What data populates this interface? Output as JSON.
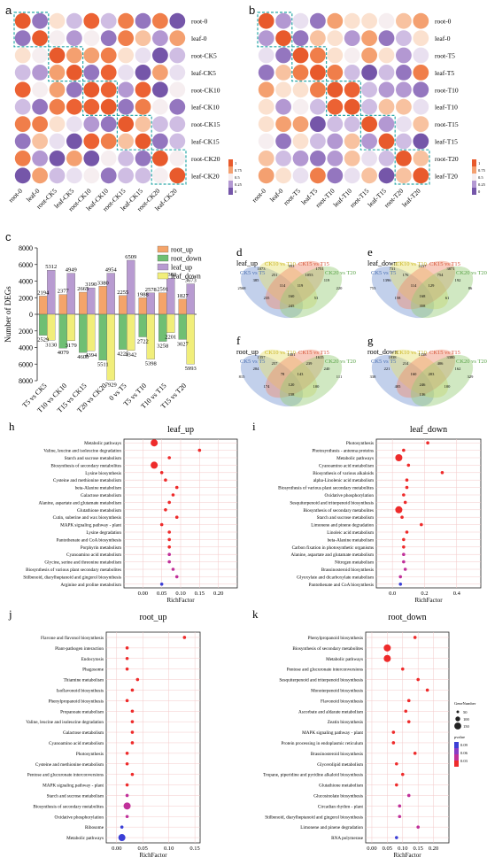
{
  "heatmaps": [
    {
      "panel_label": "a",
      "row_labels": [
        "root-0",
        "leaf-0",
        "root-CK5",
        "leaf-CK5",
        "root-CK10",
        "leaf-CK10",
        "root-CK15",
        "leaf-CK15",
        "root-CK20",
        "leaf-CK20"
      ],
      "col_labels": [
        "root-0",
        "leaf-0",
        "root-CK5",
        "leaf-CK5",
        "root-CK10",
        "leaf-CK10",
        "root-CK15",
        "leaf-CK15",
        "root-CK20",
        "leaf-CK20"
      ],
      "colorbar_ticks": [
        "1",
        "0.75",
        "0.5",
        "0.25",
        "0"
      ]
    },
    {
      "panel_label": "b",
      "row_labels": [
        "root-0",
        "leaf-0",
        "root-T5",
        "leaf-T5",
        "root-T10",
        "leaf-T10",
        "root-T15",
        "leaf-T15",
        "root-T20",
        "leaf-T20"
      ],
      "col_labels": [
        "root-0",
        "leaf-0",
        "root-T5",
        "leaf-T5",
        "root-T10",
        "leaf-T10",
        "root-T15",
        "leaf-T15",
        "root-T20",
        "leaf-T20"
      ],
      "colorbar_ticks": [
        "1",
        "0.75",
        "0.5",
        "0.25",
        "0"
      ]
    }
  ],
  "deg_chart": {
    "panel_label": "c",
    "ylabel": "Number of DEGs",
    "categories": [
      "T5 vs CK5",
      "T10 vs CK10",
      "T15 vs CK15",
      "T20 vs CK20",
      "0 vs T5",
      "T5 vs T10",
      "T10 vs T15",
      "T15 vs T20"
    ],
    "ylim": [
      -8000,
      8000
    ],
    "yticks": [
      "8000",
      "6000",
      "4000",
      "2000",
      "0",
      "2000",
      "4000",
      "6000",
      "8000"
    ],
    "legend": [
      "root_up",
      "root_down",
      "leaf_up",
      "leaf_down"
    ],
    "colors": {
      "root_up": "#f4a46a",
      "root_down": "#6fbf73",
      "leaf_up": "#b89bd1",
      "leaf_down": "#f1ee7a"
    },
    "series": [
      {
        "name": "root_up",
        "values": [
          2194,
          2377,
          2665,
          3380,
          2255,
          1988,
          2591,
          1827
        ]
      },
      {
        "name": "root_down",
        "values": [
          2529,
          4079,
          4600,
          5511,
          4225,
          2722,
          3258,
          3027
        ]
      },
      {
        "name": "leaf_up",
        "values": [
          5312,
          4949,
          3190,
          4954,
          6509,
          2578,
          4360,
          3673
        ]
      },
      {
        "name": "leaf_down",
        "values": [
          3130,
          3179,
          4394,
          7929,
          4342,
          5398,
          2201,
          5993
        ]
      }
    ]
  },
  "venns": [
    {
      "panel_label": "d",
      "title": "leaf_up",
      "sets": [
        "CK5 vs T5",
        "CK10 vs T10",
        "CK15 vs T15",
        "CK20 vs T20"
      ],
      "numbers": [
        "2568",
        "1073",
        "893",
        "1751",
        "220",
        "385",
        "251",
        "160",
        "1053",
        "119",
        "235",
        "114",
        "119",
        "53",
        "245"
      ]
    },
    {
      "panel_label": "e",
      "title": "leaf_down",
      "sets": [
        "CK5 vs T5",
        "CK10 vs T10",
        "CK15 vs T15",
        "CK20 vs T20"
      ],
      "numbers": [
        "753",
        "731",
        "2237",
        "3871",
        "86",
        "1396",
        "176",
        "168",
        "754",
        "192",
        "158",
        "114",
        "129",
        "61",
        "358"
      ]
    },
    {
      "panel_label": "f",
      "title": "root_up",
      "sets": [
        "CK5 vs T5",
        "CK10 vs T10",
        "CK15 vs T15",
        "CK20 vs T20"
      ],
      "numbers": [
        "815",
        "1357",
        "1081",
        "1615",
        "111",
        "284",
        "257",
        "120",
        "239",
        "240",
        "174",
        "78",
        "143",
        "100",
        "158"
      ]
    },
    {
      "panel_label": "g",
      "title": "root_down",
      "sets": [
        "CK5 vs T5",
        "CK10 vs T10",
        "CK15 vs T15",
        "CK20 vs T20"
      ],
      "numbers": [
        "338",
        "1838",
        "1338",
        "3380",
        "329",
        "221",
        "214",
        "246",
        "406",
        "162",
        "405",
        "160",
        "203",
        "100",
        "136"
      ]
    }
  ],
  "chart_data": [
    {
      "type": "scatter",
      "panel_label": "h",
      "title": "leaf_up",
      "xlabel": "RichFactor",
      "xlim": [
        -0.05,
        0.25
      ],
      "xticks": [
        "0.00",
        "0.05",
        "0.10",
        "0.15",
        "0.20"
      ],
      "categories": [
        "Metabolic pathways",
        "Valine, leucine and isoleucine degradation",
        "Starch and sucrose metabolism",
        "Biosynthesis of secondary metabolites",
        "Lysine biosynthesis",
        "Cysteine and methionine metabolism",
        "beta-Alanine metabolism",
        "Galactose metabolism",
        "Alanine, aspartate and glutamate metabolism",
        "Glutathione metabolism",
        "Cutin, suberine and wax biosynthesis",
        "MAPK signaling pathway - plant",
        "Lysine degradation",
        "Pantothenate and CoA biosynthesis",
        "Porphyrin metabolism",
        "Cyanoamino acid metabolism",
        "Glycine, serine and threonine metabolism",
        "Biosynthesis of various plant secondary metabolites",
        "Stilbenoid, diarylheptanoid and gingerol biosynthesis",
        "Arginine and proline metabolism"
      ],
      "values": [
        0.03,
        0.15,
        0.07,
        0.03,
        0.05,
        0.06,
        0.09,
        0.08,
        0.07,
        0.06,
        0.09,
        0.05,
        0.07,
        0.07,
        0.07,
        0.07,
        0.07,
        0.08,
        0.09,
        0.05
      ]
    },
    {
      "type": "scatter",
      "panel_label": "i",
      "title": "leaf_down",
      "xlabel": "RichFactor",
      "xlim": [
        -0.1,
        0.55
      ],
      "xticks": [
        "0.0",
        "0.2",
        "0.4"
      ],
      "categories": [
        "Photosynthesis",
        "Photosynthesis - antenna proteins",
        "Metabolic pathways",
        "Cyanoamino acid metabolism",
        "Biosynthesis of various alkaloids",
        "alpha-Linolenic acid metabolism",
        "Biosynthesis of various plant secondary metabolites",
        "Oxidative phosphorylation",
        "Sesquiterpenoid and triterpenoid biosynthesis",
        "Biosynthesis of secondary metabolites",
        "Starch and sucrose metabolism",
        "Limonene and pinene degradation",
        "Linoleic acid metabolism",
        "beta-Alanine metabolism",
        "Carbon fixation in photosynthetic organisms",
        "Alanine, aspartate and glutamate metabolism",
        "Nitrogen metabolism",
        "Brassinosteroid biosynthesis",
        "Glyoxylate and dicarboxylate metabolism",
        "Pantothenate and CoA biosynthesis"
      ],
      "values": [
        0.22,
        0.07,
        0.04,
        0.1,
        0.31,
        0.09,
        0.09,
        0.07,
        0.08,
        0.04,
        0.06,
        0.18,
        0.09,
        0.07,
        0.07,
        0.07,
        0.07,
        0.08,
        0.05,
        0.05
      ]
    },
    {
      "type": "scatter",
      "panel_label": "j",
      "title": "root_up",
      "xlabel": "RichFactor",
      "xlim": [
        -0.02,
        0.16
      ],
      "xticks": [
        "0.00",
        "0.05",
        "0.10",
        "0.15"
      ],
      "categories": [
        "Flavone and flavonol biosynthesis",
        "Plant-pathogen interaction",
        "Endocytosis",
        "Phagosome",
        "Thiamine metabolism",
        "Isoflavonoid biosynthesis",
        "Phenylpropanoid biosynthesis",
        "Propanoate metabolism",
        "Valine, leucine and isoleucine degradation",
        "Galactose metabolism",
        "Cyanoamino acid metabolism",
        "Photosynthesis",
        "Cysteine and methionine metabolism",
        "Pentose and glucuronate interconversions",
        "MAPK signaling pathway - plant",
        "Starch and sucrose metabolism",
        "Biosynthesis of secondary metabolites",
        "Oxidative phosphorylation",
        "Ribosome",
        "Metabolic pathways"
      ],
      "values": [
        0.13,
        0.02,
        0.02,
        0.02,
        0.04,
        0.03,
        0.02,
        0.03,
        0.03,
        0.03,
        0.03,
        0.02,
        0.02,
        0.03,
        0.02,
        0.02,
        0.02,
        0.02,
        0.01,
        0.01
      ]
    },
    {
      "type": "scatter",
      "panel_label": "k",
      "title": "root_down",
      "xlabel": "RichFactor",
      "xlim": [
        -0.02,
        0.25
      ],
      "xticks": [
        "0.00",
        "0.05",
        "0.10",
        "0.15",
        "0.20"
      ],
      "categories": [
        "Phenylpropanoid biosynthesis",
        "Biosynthesis of secondary metabolites",
        "Metabolic pathways",
        "Pentose and glucuronate interconversions",
        "Sesquiterpenoid and triterpenoid biosynthesis",
        "Monoterpenoid biosynthesis",
        "Flavonoid biosynthesis",
        "Ascorbate and aldarate metabolism",
        "Zeatin biosynthesis",
        "MAPK signaling pathway - plant",
        "Protein processing in endoplasmic reticulum",
        "Brassinosteroid biosynthesis",
        "Glycerolipid metabolism",
        "Tropane, piperidine and pyridine alkaloid biosynthesis",
        "Glutathione metabolism",
        "Glucosinolate biosynthesis",
        "Circadian rhythm - plant",
        "Stilbenoid, diarylheptanoid and gingerol biosynthesis",
        "Limonene and pinene degradation",
        "RNA polymerase"
      ],
      "values": [
        0.14,
        0.05,
        0.05,
        0.1,
        0.15,
        0.18,
        0.12,
        0.11,
        0.12,
        0.07,
        0.07,
        0.14,
        0.08,
        0.1,
        0.08,
        0.12,
        0.09,
        0.09,
        0.15,
        0.08
      ],
      "legend_gene_title": "GeneNumber",
      "legend_gene_ticks": [
        "50",
        "100",
        "150"
      ],
      "legend_p_title": "pvalue",
      "legend_p_ticks": [
        "0.09",
        "0.06",
        "0.03"
      ]
    }
  ]
}
